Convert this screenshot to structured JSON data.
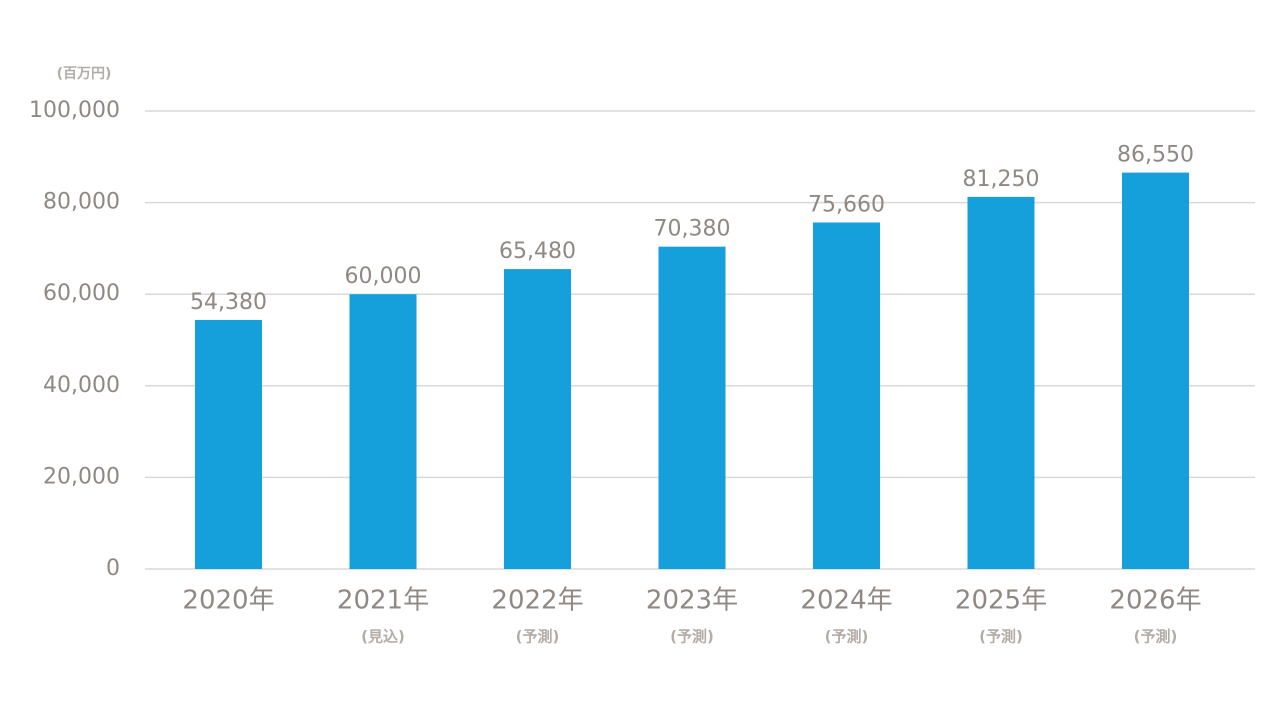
{
  "chart_data": {
    "type": "bar",
    "y_axis_label": "(百万円)",
    "categories": [
      "2020年",
      "2021年",
      "2022年",
      "2023年",
      "2024年",
      "2025年",
      "2026年"
    ],
    "category_notes": [
      null,
      "(見込)",
      "(予測)",
      "(予測)",
      "(予測)",
      "(予測)",
      "(予測)"
    ],
    "values": [
      54380,
      60000,
      65480,
      70380,
      75660,
      81250,
      86550
    ],
    "value_labels": [
      "54,380",
      "60,000",
      "65,480",
      "70,380",
      "75,660",
      "81,250",
      "86,550"
    ],
    "color": "#159fdb",
    "ylim": [
      0,
      100000
    ],
    "yticks": [
      0,
      {
        "value": 20000,
        "label": "20,000"
      },
      {
        "value": 40000,
        "label": "40,000"
      },
      {
        "value": 60000,
        "label": "60,000"
      },
      {
        "value": 80000,
        "label": "80,000"
      },
      {
        "value": 100000,
        "label": "100,000"
      }
    ],
    "grid": true
  }
}
